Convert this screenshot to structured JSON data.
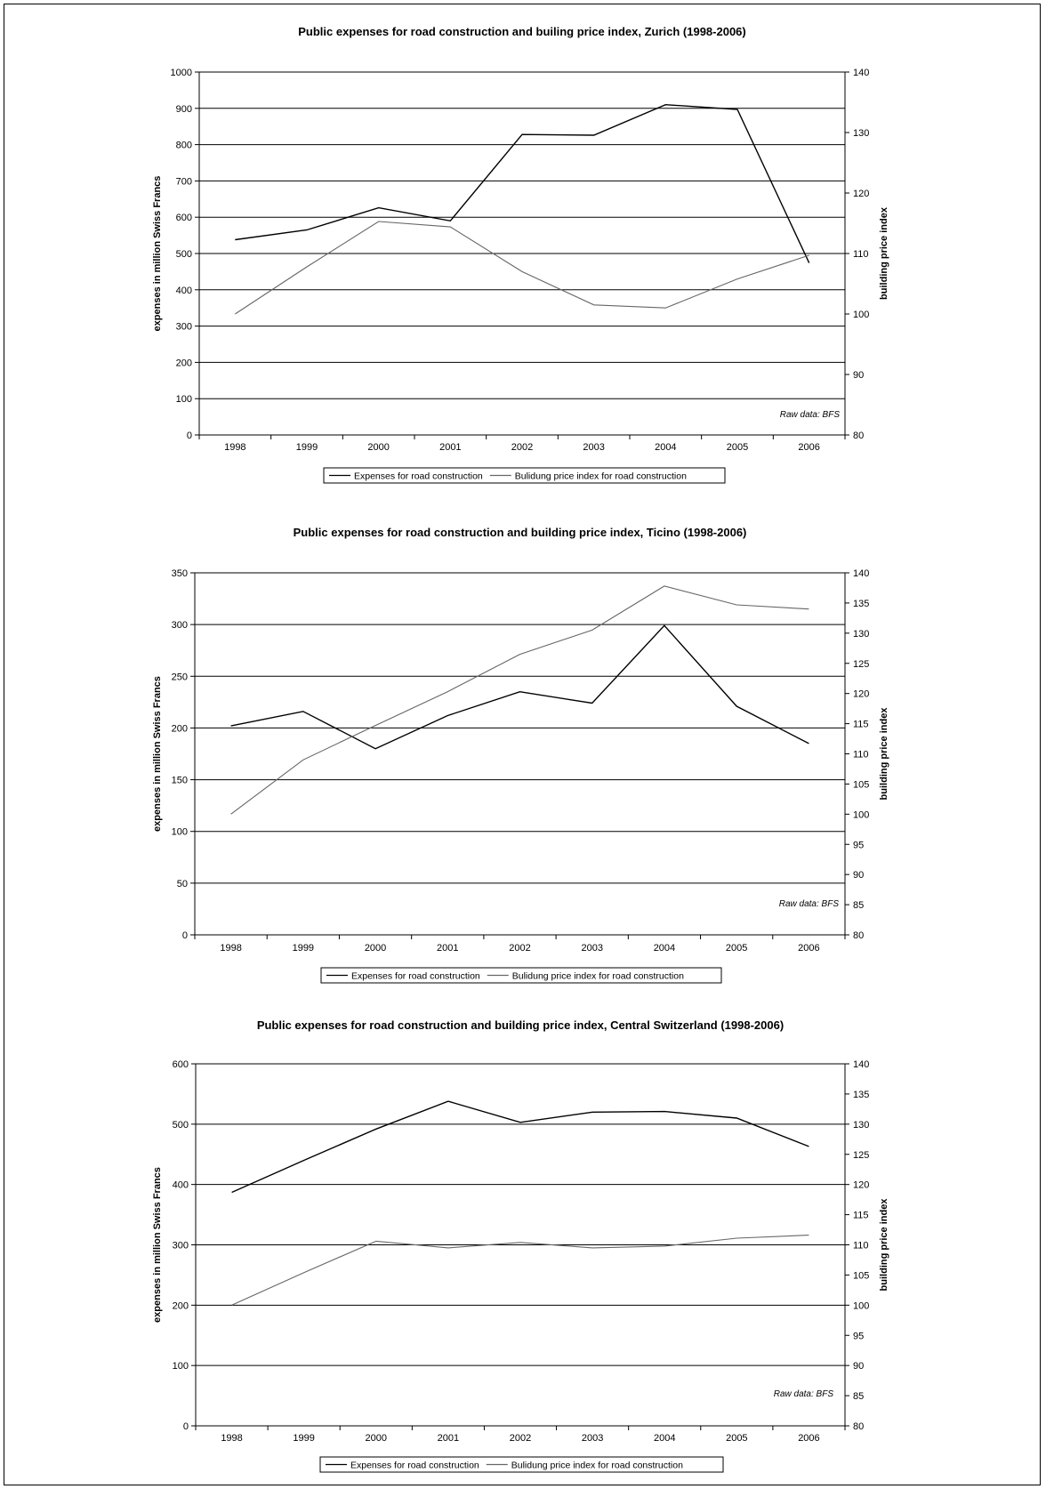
{
  "chart_data": [
    {
      "type": "line",
      "title": "Public expenses for road construction and builing price index, Zurich (1998-2006)",
      "categories": [
        "1998",
        "1999",
        "2000",
        "2001",
        "2002",
        "2003",
        "2004",
        "2005",
        "2006"
      ],
      "ylabel": "expenses in million Swiss Francs",
      "y2label": "building price index",
      "ylim": [
        0,
        1000
      ],
      "y2lim": [
        80,
        140
      ],
      "yticks": [
        "0",
        "100",
        "200",
        "300",
        "400",
        "500",
        "600",
        "700",
        "800",
        "900",
        "1000"
      ],
      "y2ticks": [
        "80",
        "90",
        "100",
        "110",
        "120",
        "130",
        "140"
      ],
      "note": "Raw data: BFS",
      "legend_position": "bottom",
      "grid": true,
      "series": [
        {
          "name": "Expenses for road construction",
          "axis": "left",
          "color": "#000000",
          "values": [
            538,
            565,
            626,
            590,
            828,
            826,
            910,
            897,
            474
          ]
        },
        {
          "name": "Bulidung price index for road construction",
          "axis": "right",
          "color": "#666666",
          "values": [
            100,
            107.8,
            115.3,
            114.4,
            107,
            101.5,
            101,
            105.8,
            109.7
          ]
        }
      ]
    },
    {
      "type": "line",
      "title": "Public expenses for road construction and building price index, Ticino (1998-2006)",
      "categories": [
        "1998",
        "1999",
        "2000",
        "2001",
        "2002",
        "2003",
        "2004",
        "2005",
        "2006"
      ],
      "ylabel": "expenses in million Swiss Francs",
      "y2label": "building price index",
      "ylim": [
        0,
        350
      ],
      "y2lim": [
        80,
        140
      ],
      "yticks": [
        "0",
        "50",
        "100",
        "150",
        "200",
        "250",
        "300",
        "350"
      ],
      "y2ticks": [
        "80",
        "85",
        "90",
        "95",
        "100",
        "105",
        "110",
        "115",
        "120",
        "125",
        "130",
        "135",
        "140"
      ],
      "note": "Raw data: BFS",
      "legend_position": "bottom",
      "grid": true,
      "series": [
        {
          "name": "Expenses for road construction",
          "axis": "left",
          "color": "#000000",
          "values": [
            202,
            216,
            180,
            212,
            235,
            224,
            299,
            221,
            185
          ]
        },
        {
          "name": "Bulidung price index for road construction",
          "axis": "right",
          "color": "#666666",
          "values": [
            100,
            109,
            114.7,
            120.3,
            126.5,
            130.5,
            137.8,
            134.7,
            134
          ]
        }
      ]
    },
    {
      "type": "line",
      "title": "Public expenses for road construction and building price index, Central Switzerland (1998-2006)",
      "categories": [
        "1998",
        "1999",
        "2000",
        "2001",
        "2002",
        "2003",
        "2004",
        "2005",
        "2006"
      ],
      "ylabel": "expenses in million Swiss Francs",
      "y2label": "building price index",
      "ylim": [
        0,
        600
      ],
      "y2lim": [
        80,
        140
      ],
      "yticks": [
        "0",
        "100",
        "200",
        "300",
        "400",
        "500",
        "600"
      ],
      "y2ticks": [
        "80",
        "85",
        "90",
        "95",
        "100",
        "105",
        "110",
        "115",
        "120",
        "125",
        "130",
        "135",
        "140"
      ],
      "note": "Raw data: BFS",
      "legend_position": "bottom",
      "grid": true,
      "series": [
        {
          "name": "Expenses for road construction",
          "axis": "left",
          "color": "#000000",
          "values": [
            387,
            440,
            492,
            538,
            503,
            520,
            521,
            510,
            463
          ]
        },
        {
          "name": "Bulidung price index for road construction",
          "axis": "right",
          "color": "#666666",
          "values": [
            100,
            105.4,
            110.6,
            109.5,
            110.4,
            109.5,
            109.8,
            111.1,
            111.6
          ]
        }
      ]
    }
  ]
}
